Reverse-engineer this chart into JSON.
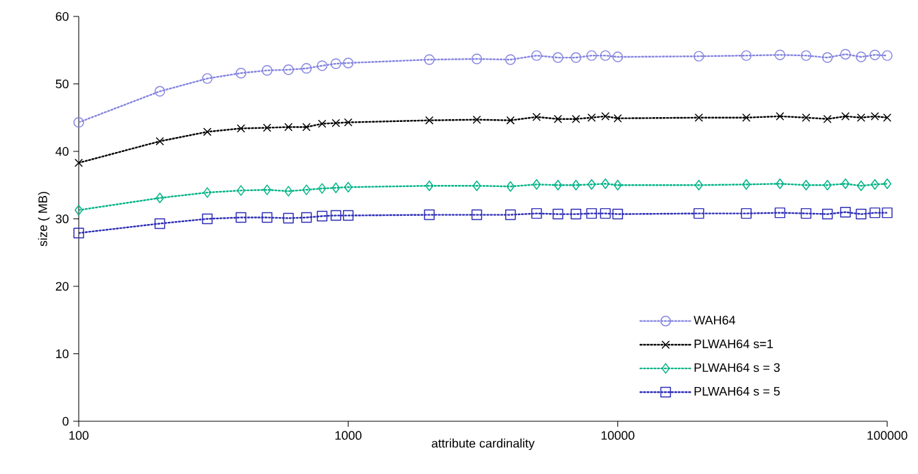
{
  "chart_data": {
    "type": "line",
    "xlabel": "attribute cardinality",
    "ylabel": "size ( MB)",
    "log": "x",
    "x": [
      100,
      200,
      300,
      400,
      500,
      600,
      700,
      800,
      900,
      1000,
      2000,
      3000,
      4000,
      5000,
      6000,
      7000,
      8000,
      9000,
      10000,
      20000,
      30000,
      40000,
      50000,
      60000,
      70000,
      80000,
      90000,
      100000
    ],
    "xlim": [
      100,
      100000
    ],
    "xticks": [
      100,
      1000,
      10000,
      100000
    ],
    "ylim": [
      0,
      60
    ],
    "yticks": [
      0,
      10,
      20,
      30,
      40,
      50,
      60
    ],
    "grid": false,
    "legend": "bottom right",
    "line_style": "dotted",
    "series": [
      {
        "name": "WAH64",
        "color": "#8484e0",
        "marker": "circle",
        "values": [
          44.3,
          48.9,
          50.8,
          51.6,
          52.0,
          52.1,
          52.3,
          52.7,
          53.0,
          53.1,
          53.6,
          53.7,
          53.6,
          54.2,
          53.9,
          53.9,
          54.2,
          54.2,
          54.0,
          54.1,
          54.2,
          54.3,
          54.2,
          53.9,
          54.4,
          54.0,
          54.3,
          54.2
        ]
      },
      {
        "name": "PLWAH64 s=1",
        "color": "#000000",
        "marker": "cross",
        "values": [
          38.3,
          41.5,
          42.9,
          43.4,
          43.5,
          43.6,
          43.6,
          44.1,
          44.2,
          44.3,
          44.6,
          44.7,
          44.6,
          45.1,
          44.8,
          44.8,
          45.0,
          45.2,
          44.9,
          45.0,
          45.0,
          45.2,
          45.0,
          44.8,
          45.2,
          45.0,
          45.2,
          45.0
        ]
      },
      {
        "name": "PLWAH64 s = 3",
        "color": "#00b386",
        "marker": "diamond",
        "values": [
          31.3,
          33.1,
          33.9,
          34.2,
          34.3,
          34.1,
          34.3,
          34.5,
          34.6,
          34.7,
          34.9,
          34.9,
          34.8,
          35.1,
          35.0,
          35.0,
          35.1,
          35.2,
          35.0,
          35.0,
          35.1,
          35.2,
          35.0,
          35.0,
          35.2,
          34.9,
          35.1,
          35.2
        ]
      },
      {
        "name": "PLWAH64 s = 5",
        "color": "#2b2bb5",
        "marker": "square",
        "values": [
          27.9,
          29.3,
          30.0,
          30.2,
          30.2,
          30.1,
          30.2,
          30.4,
          30.5,
          30.5,
          30.6,
          30.6,
          30.6,
          30.8,
          30.7,
          30.7,
          30.8,
          30.8,
          30.7,
          30.8,
          30.8,
          30.9,
          30.8,
          30.7,
          31.0,
          30.7,
          30.9,
          30.9
        ]
      }
    ]
  }
}
